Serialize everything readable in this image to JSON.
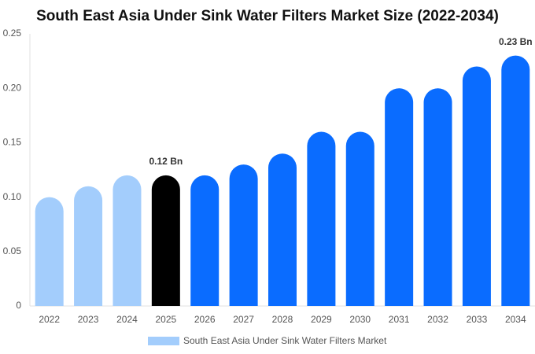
{
  "chart_data": {
    "type": "bar",
    "title": "South East Asia Under Sink Water Filters Market Size (2022-2034)",
    "categories": [
      "2022",
      "2023",
      "2024",
      "2025",
      "2026",
      "2027",
      "2028",
      "2029",
      "2030",
      "2031",
      "2032",
      "2033",
      "2034"
    ],
    "series": [
      {
        "name": "South East Asia Under Sink Water Filters Market",
        "color": "#a3cdfc",
        "values": [
          0.1,
          0.11,
          0.12,
          0.12,
          0.12,
          0.13,
          0.14,
          0.16,
          0.16,
          0.2,
          0.2,
          0.22,
          0.23
        ],
        "colors": [
          "#a3cdfc",
          "#a3cdfc",
          "#a3cdfc",
          "#000000",
          "#0a6cff",
          "#0a6cff",
          "#0a6cff",
          "#0a6cff",
          "#0a6cff",
          "#0a6cff",
          "#0a6cff",
          "#0a6cff",
          "#0a6cff"
        ],
        "value_labels": [
          null,
          null,
          null,
          "0.12 Bn",
          null,
          null,
          null,
          null,
          null,
          null,
          null,
          null,
          "0.23 Bn"
        ]
      }
    ],
    "ylim": [
      0,
      0.25
    ],
    "yticks": [
      0,
      0.05,
      {
        "value": 0.1,
        "label": "0.10"
      },
      0.15,
      {
        "value": 0.2,
        "label": "0.20"
      },
      0.25
    ],
    "grid": false
  }
}
